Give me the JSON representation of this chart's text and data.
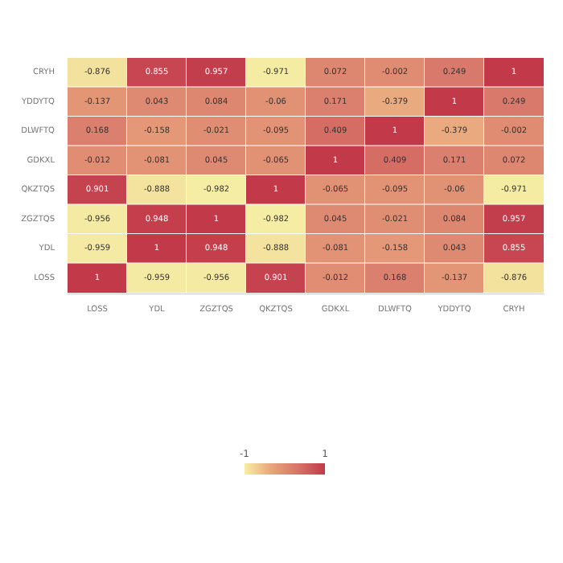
{
  "chart_data": {
    "type": "heatmap",
    "categories": [
      "LOSS",
      "YDL",
      "ZGZTQS",
      "QKZTQS",
      "GDKXL",
      "DLWFTQ",
      "YDDYTQ",
      "CRYH"
    ],
    "y_categories": [
      "CRYH",
      "YDDYTQ",
      "DLWFTQ",
      "GDKXL",
      "QKZTQS",
      "ZGZTQS",
      "YDL",
      "LOSS"
    ],
    "cells": [
      [
        -0.876,
        0.855,
        0.957,
        -0.971,
        0.072,
        -0.002,
        0.249,
        1
      ],
      [
        -0.137,
        0.043,
        0.084,
        -0.06,
        0.171,
        -0.379,
        1,
        0.249
      ],
      [
        0.168,
        -0.158,
        -0.021,
        -0.095,
        0.409,
        1,
        -0.379,
        -0.002
      ],
      [
        -0.012,
        -0.081,
        0.045,
        -0.065,
        1,
        0.409,
        0.171,
        0.072
      ],
      [
        0.901,
        -0.888,
        -0.982,
        1,
        -0.065,
        -0.095,
        -0.06,
        -0.971
      ],
      [
        -0.956,
        0.948,
        1,
        -0.982,
        0.045,
        -0.021,
        0.084,
        0.957
      ],
      [
        -0.959,
        1,
        0.948,
        -0.888,
        -0.081,
        -0.158,
        0.043,
        0.855
      ],
      [
        1,
        -0.959,
        -0.956,
        0.901,
        -0.012,
        0.168,
        -0.137,
        -0.876
      ]
    ],
    "clim": [
      -1,
      1
    ],
    "cticks": [
      -1,
      1
    ],
    "data_labels": true
  }
}
